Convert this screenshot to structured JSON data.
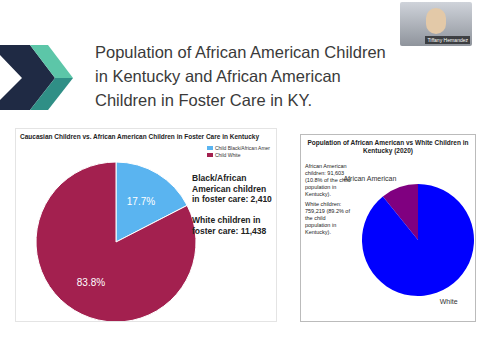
{
  "slide": {
    "title": "Population of African American Children in Kentucky and African American Children in Foster Care in KY.",
    "presenter": "Tiffany Hernandez"
  },
  "chart_data": [
    {
      "type": "pie",
      "title": "Caucasian Children vs. African American Children in Foster Care in Kentucky",
      "categories": [
        "Child Black/African Amer",
        "Child White"
      ],
      "values": [
        17.7,
        83.8
      ],
      "value_labels": [
        "17.7%",
        "83.8%"
      ],
      "colors": [
        "#5ab4f0",
        "#a3204f"
      ],
      "data_labels": true,
      "legend": "upper right",
      "annotations": [
        "Black/African American children in foster care: 2,410",
        "White children in foster care: 11,438"
      ]
    },
    {
      "type": "pie",
      "title": "Population of African American vs White Children in Kentucky (2020)",
      "categories": [
        "African American",
        "White"
      ],
      "values": [
        10.8,
        89.2
      ],
      "colors": [
        "#800080",
        "#0000ff"
      ],
      "data_labels": false,
      "annotations": [
        "African American children: 91,603 (10.8% of the child population in Kentucky).",
        "White children: 759,219 (89.2% of the child population in Kentucky)."
      ]
    }
  ]
}
